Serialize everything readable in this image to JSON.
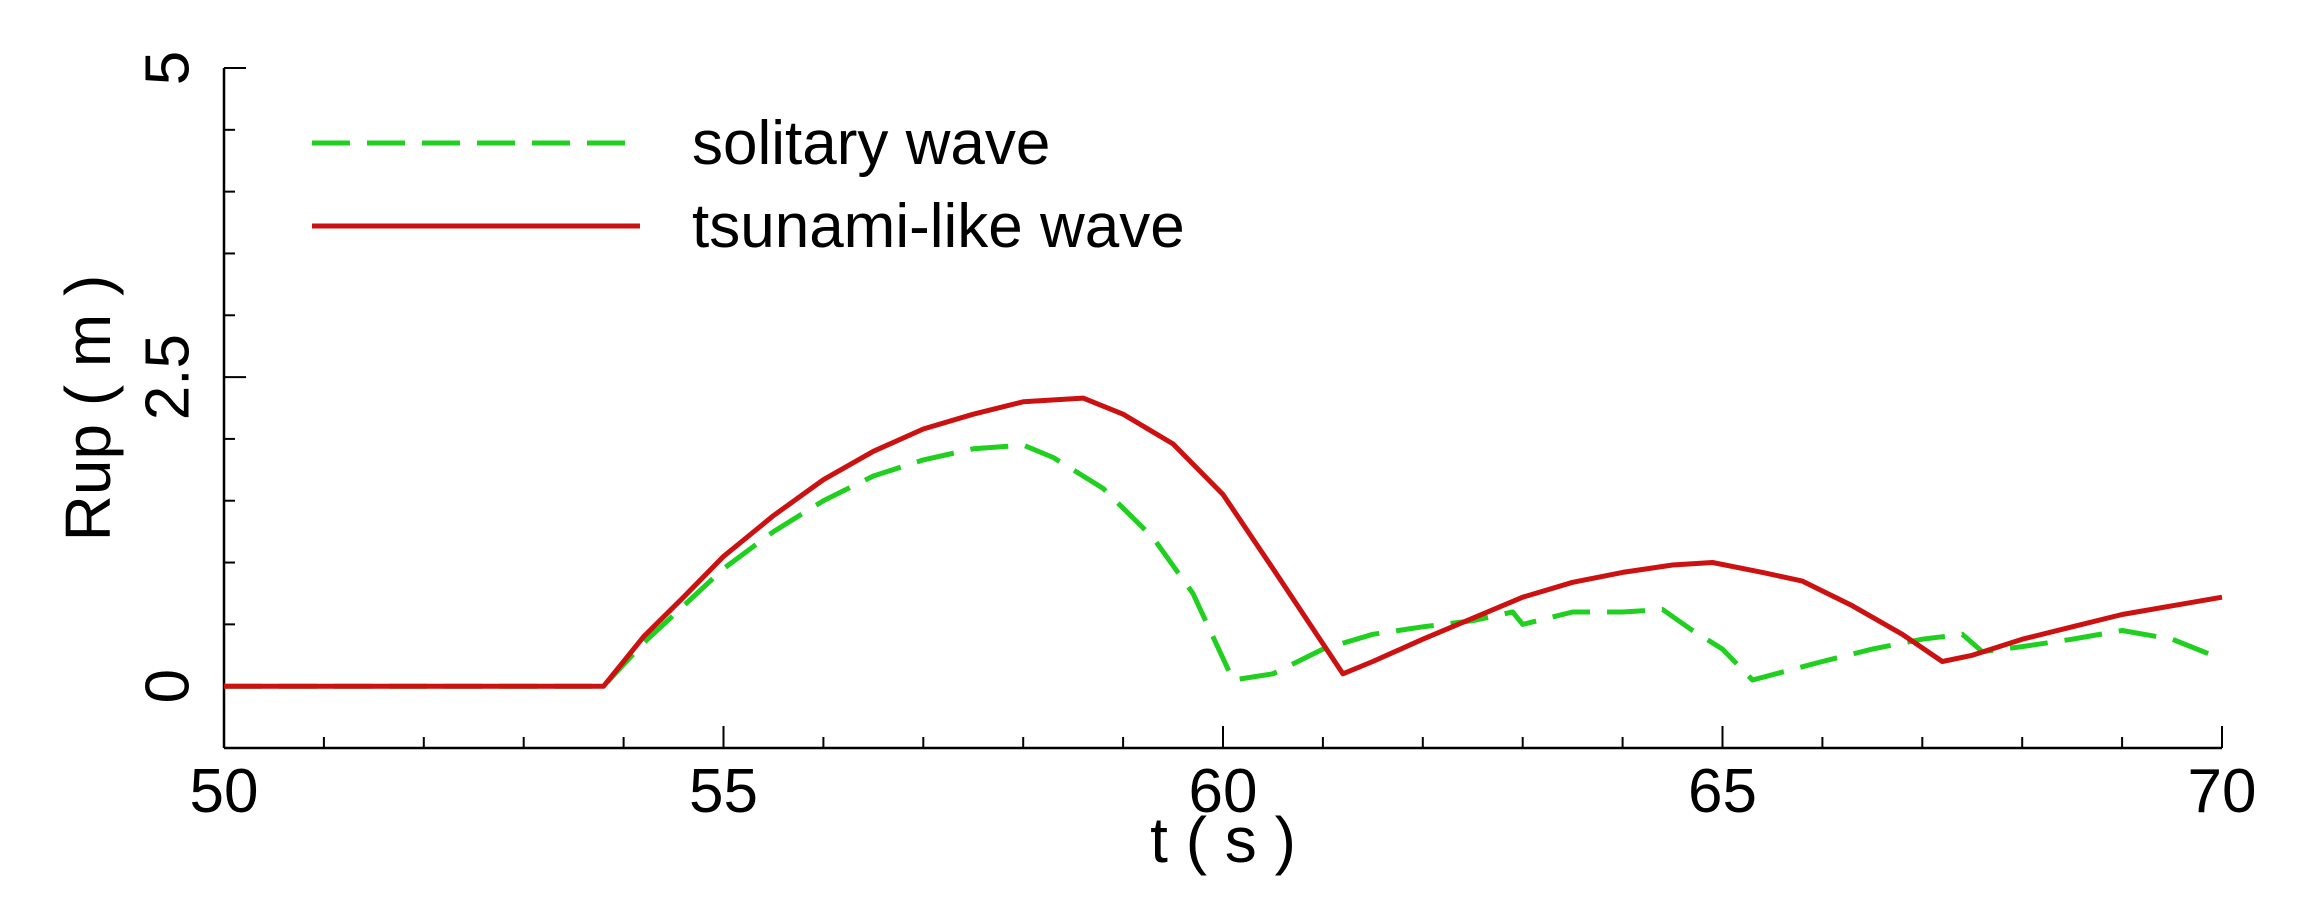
{
  "chart_data": {
    "type": "line",
    "xlabel": "t ( s )",
    "ylabel": "Rup ( m )",
    "xlim": [
      50,
      70
    ],
    "ylim": [
      -0.5,
      5
    ],
    "x_ticks": [
      "50",
      "55",
      "60",
      "65",
      "70"
    ],
    "y_ticks": [
      "0",
      "2.5",
      "5"
    ],
    "legend_position": "top-left",
    "grid": false,
    "series": [
      {
        "name": "solitary wave",
        "color": "#1fd01f",
        "style": "dashed",
        "points": [
          [
            50,
            0
          ],
          [
            53.8,
            0
          ],
          [
            54.2,
            0.35
          ],
          [
            55,
            0.95
          ],
          [
            55.5,
            1.25
          ],
          [
            56,
            1.5
          ],
          [
            56.5,
            1.7
          ],
          [
            57,
            1.83
          ],
          [
            57.5,
            1.92
          ],
          [
            58,
            1.95
          ],
          [
            58.3,
            1.85
          ],
          [
            58.8,
            1.6
          ],
          [
            59.3,
            1.2
          ],
          [
            59.7,
            0.75
          ],
          [
            60.1,
            0.05
          ],
          [
            60.5,
            0.1
          ],
          [
            61,
            0.3
          ],
          [
            61.5,
            0.42
          ],
          [
            62,
            0.48
          ],
          [
            62.5,
            0.53
          ],
          [
            62.9,
            0.6
          ],
          [
            63,
            0.5
          ],
          [
            63.5,
            0.6
          ],
          [
            64,
            0.6
          ],
          [
            64.4,
            0.62
          ],
          [
            64.7,
            0.45
          ],
          [
            65,
            0.3
          ],
          [
            65.3,
            0.05
          ],
          [
            66,
            0.2
          ],
          [
            66.5,
            0.3
          ],
          [
            67,
            0.38
          ],
          [
            67.4,
            0.42
          ],
          [
            67.6,
            0.28
          ],
          [
            68,
            0.32
          ],
          [
            68.5,
            0.38
          ],
          [
            69,
            0.45
          ],
          [
            69.5,
            0.38
          ],
          [
            70,
            0.22
          ]
        ]
      },
      {
        "name": "tsunami-like wave",
        "color": "#cc1111",
        "style": "solid",
        "points": [
          [
            50,
            0
          ],
          [
            53.8,
            0
          ],
          [
            54.2,
            0.4
          ],
          [
            54.6,
            0.72
          ],
          [
            55,
            1.05
          ],
          [
            55.5,
            1.38
          ],
          [
            56,
            1.67
          ],
          [
            56.5,
            1.9
          ],
          [
            57,
            2.08
          ],
          [
            57.5,
            2.2
          ],
          [
            58,
            2.3
          ],
          [
            58.6,
            2.33
          ],
          [
            59,
            2.2
          ],
          [
            59.5,
            1.96
          ],
          [
            60,
            1.55
          ],
          [
            60.5,
            0.95
          ],
          [
            61.2,
            0.1
          ],
          [
            61.5,
            0.2
          ],
          [
            62,
            0.38
          ],
          [
            62.5,
            0.55
          ],
          [
            63,
            0.72
          ],
          [
            63.5,
            0.84
          ],
          [
            64,
            0.92
          ],
          [
            64.5,
            0.98
          ],
          [
            64.9,
            1.0
          ],
          [
            65.4,
            0.92
          ],
          [
            65.8,
            0.85
          ],
          [
            66.3,
            0.65
          ],
          [
            66.8,
            0.42
          ],
          [
            67.2,
            0.2
          ],
          [
            67.5,
            0.25
          ],
          [
            68,
            0.38
          ],
          [
            68.5,
            0.48
          ],
          [
            69,
            0.58
          ],
          [
            69.5,
            0.65
          ],
          [
            70,
            0.72
          ]
        ]
      }
    ]
  }
}
